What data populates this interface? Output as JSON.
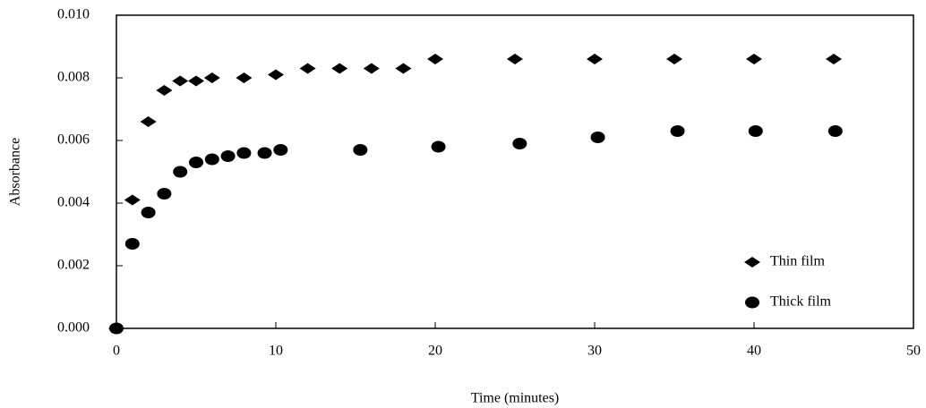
{
  "chart_data": {
    "type": "scatter",
    "x_label": "Time (minutes)",
    "y_label": "Absorbance",
    "xlim": [
      0,
      50
    ],
    "xticks": [
      0,
      10,
      20,
      30,
      40,
      50
    ],
    "ylim": [
      0,
      0.01
    ],
    "yticks": [
      {
        "value": 0,
        "label": "0.000"
      },
      {
        "value": 0.002,
        "label": "0.002"
      },
      {
        "value": 0.004,
        "label": "0.004"
      },
      {
        "value": 0.006,
        "label": "0.006"
      },
      {
        "value": 0.008,
        "label": "0.008"
      },
      {
        "value": 0.01,
        "label": "0.010"
      }
    ],
    "grid": false,
    "legend": "lower right",
    "series": [
      {
        "name": "Thin film",
        "color": "#000000",
        "marker": "diamond",
        "x": [
          0,
          1,
          2,
          3,
          4,
          5,
          6,
          8,
          10,
          12,
          14,
          16,
          18,
          20,
          25,
          30,
          35,
          40,
          45
        ],
        "values": [
          0,
          0.0041,
          0.0066,
          0.0076,
          0.0079,
          0.0079,
          0.008,
          0.008,
          0.0081,
          0.0083,
          0.0083,
          0.0083,
          0.0083,
          0.0086,
          0.0086,
          0.0086,
          0.0086,
          0.0086,
          0.0086
        ]
      },
      {
        "name": "Thick film",
        "color": "#000000",
        "marker": "circle",
        "x": [
          0,
          1,
          2,
          3,
          4,
          5,
          6,
          7,
          8,
          9.3,
          10.3,
          15.3,
          20.2,
          25.3,
          30.2,
          35.2,
          40.1,
          45.1
        ],
        "values": [
          0,
          0.0027,
          0.0037,
          0.0043,
          0.005,
          0.0053,
          0.0054,
          0.0055,
          0.0056,
          0.0056,
          0.0057,
          0.0057,
          0.0058,
          0.0059,
          0.0061,
          0.0063,
          0.0063,
          0.0063
        ]
      }
    ]
  }
}
